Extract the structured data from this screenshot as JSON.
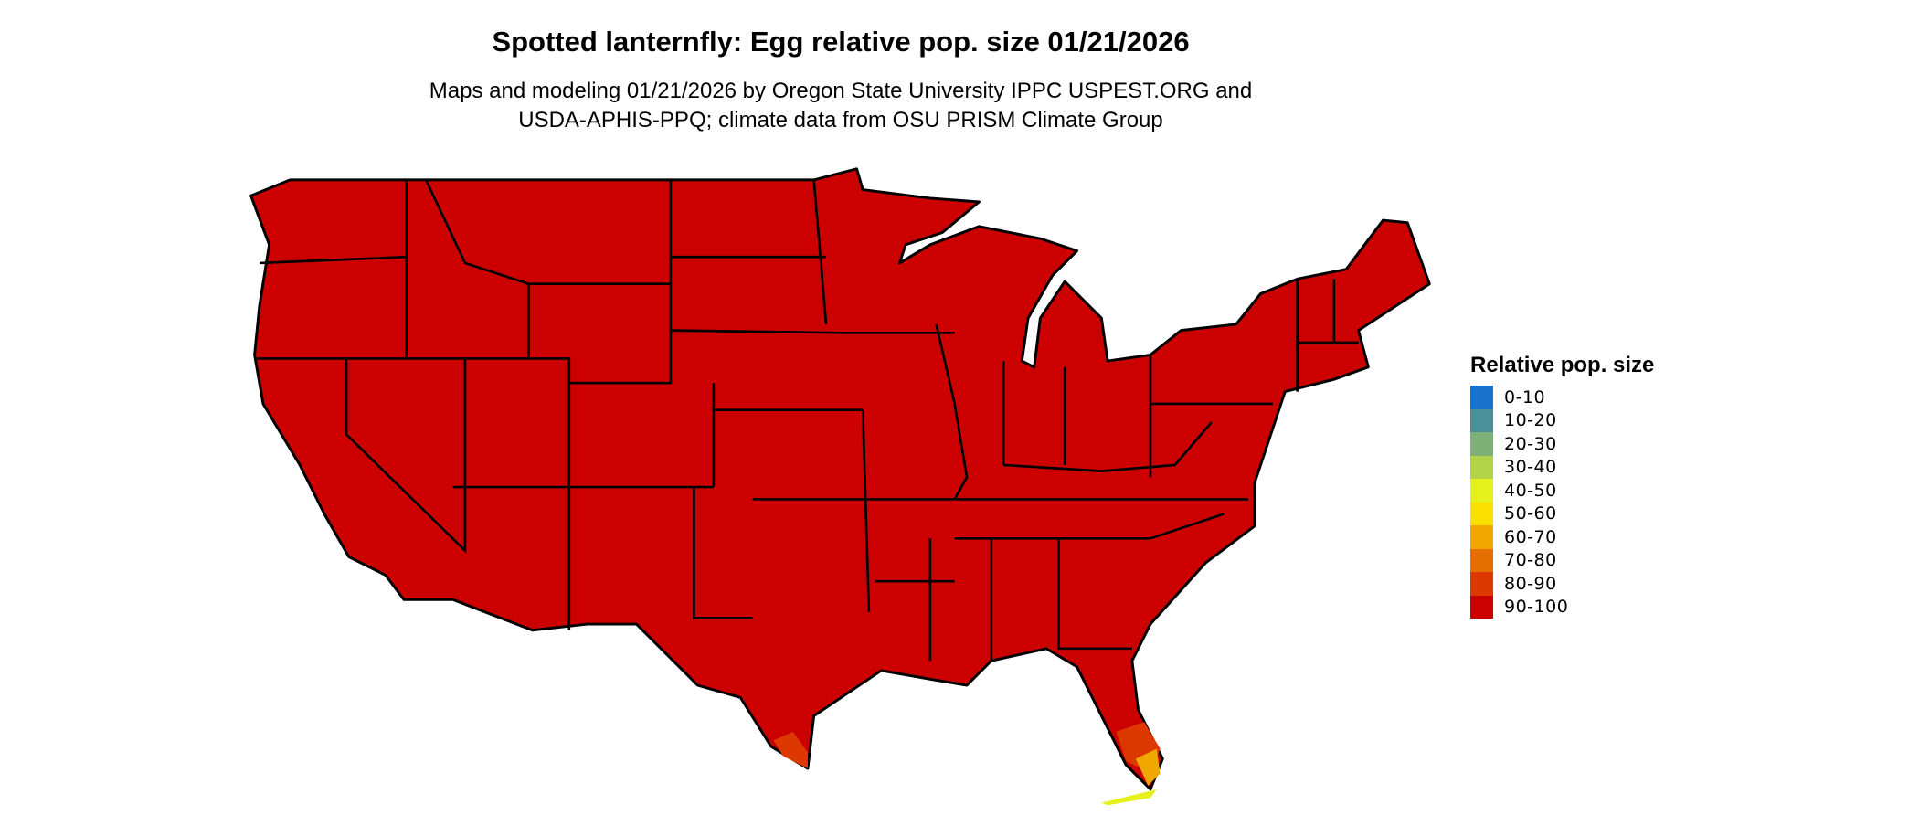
{
  "title": "Spotted lanternfly: Egg relative pop. size 01/21/2026",
  "subtitle_line1": "Maps and modeling 01/21/2026 by Oregon State University IPPC USPEST.ORG and",
  "subtitle_line2": "USDA-APHIS-PPQ; climate data from OSU PRISM Climate Group",
  "legend": {
    "title": "Relative pop. size",
    "items": [
      {
        "label": "0-10",
        "color": "#1874CD"
      },
      {
        "label": "10-20",
        "color": "#4A9099"
      },
      {
        "label": "20-30",
        "color": "#7FB077"
      },
      {
        "label": "30-40",
        "color": "#B2D247"
      },
      {
        "label": "40-50",
        "color": "#E6F01A"
      },
      {
        "label": "50-60",
        "color": "#FAE000"
      },
      {
        "label": "60-70",
        "color": "#F0A800"
      },
      {
        "label": "70-80",
        "color": "#E47000"
      },
      {
        "label": "80-90",
        "color": "#DC3800"
      },
      {
        "label": "90-100",
        "color": "#CD0000"
      }
    ]
  },
  "map": {
    "region": "Contiguous United States",
    "dominant_class": "90-100",
    "dominant_color": "#CD0000",
    "border_color": "#000000",
    "notable_areas": [
      {
        "area": "South Florida",
        "classes": [
          "80-90",
          "60-70",
          "40-50"
        ]
      },
      {
        "area": "South Texas coast",
        "classes": [
          "80-90",
          "70-80"
        ]
      }
    ]
  }
}
